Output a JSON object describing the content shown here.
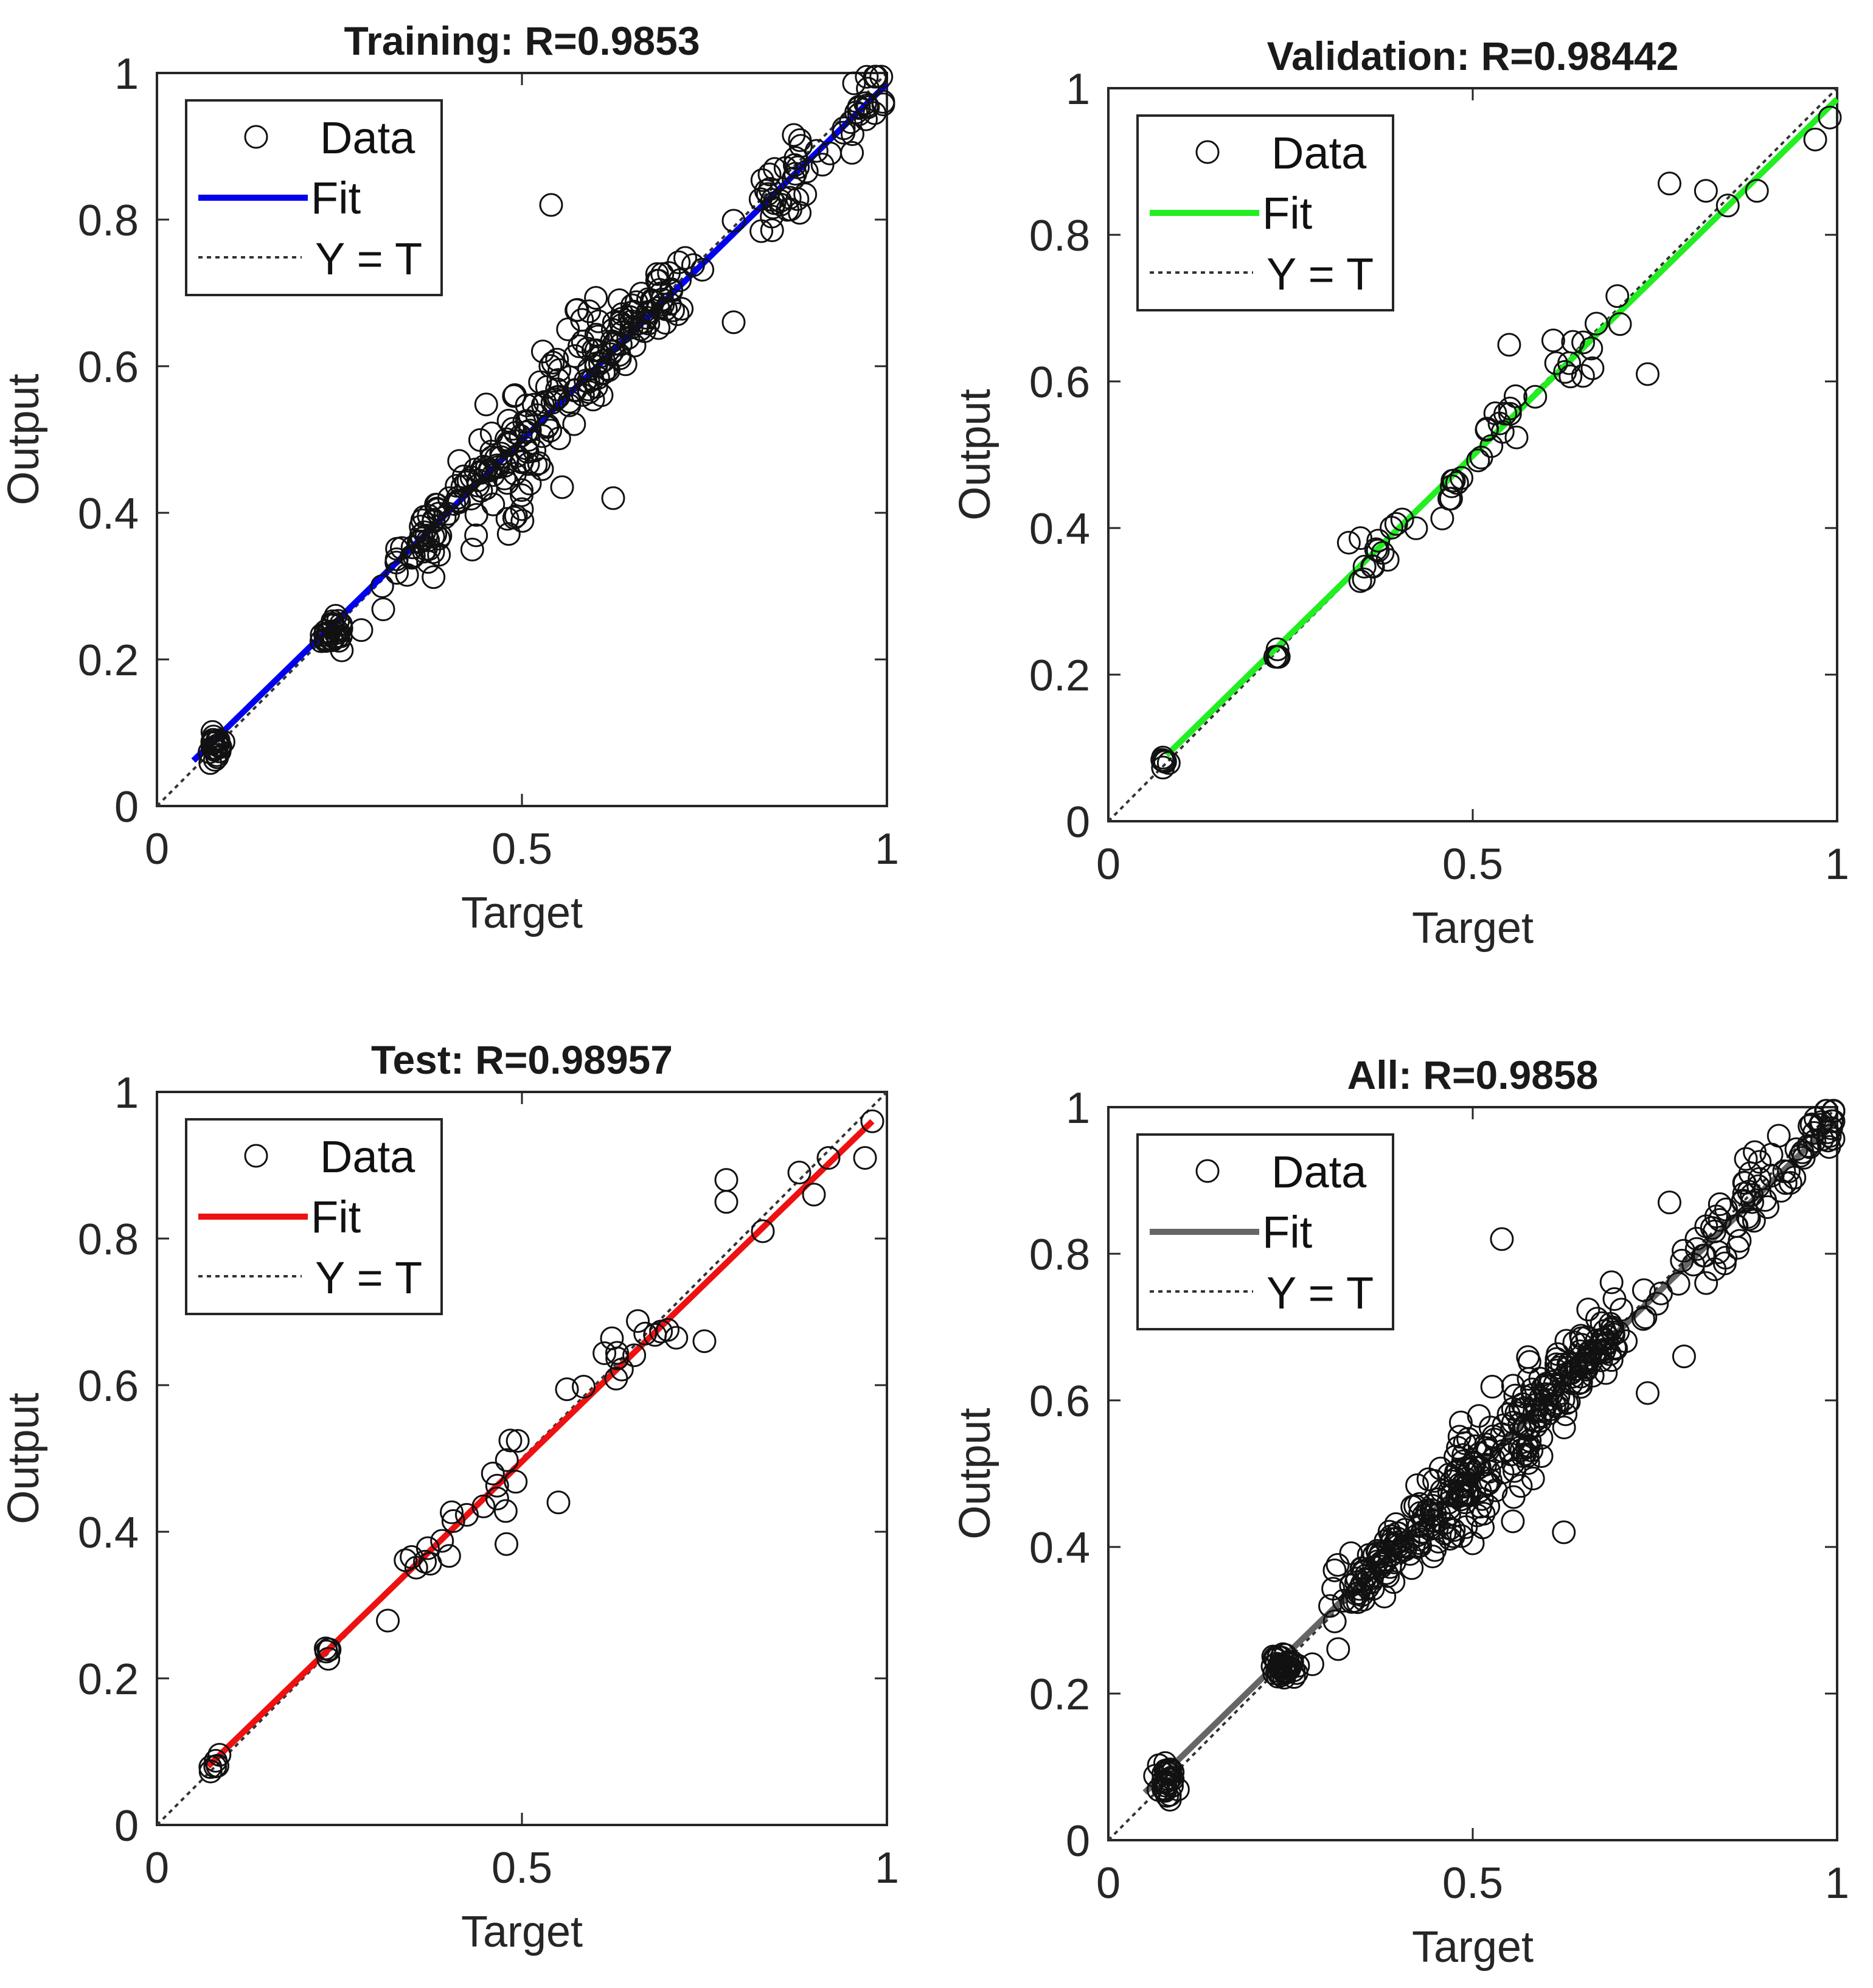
{
  "chart_data": [
    {
      "type": "scatter",
      "title": "Training: R=0.9853",
      "xlabel": "Target",
      "ylabel": "Output",
      "xlim": [
        0,
        1
      ],
      "ylim": [
        0,
        1
      ],
      "xticks": [
        "0",
        "0.5",
        "1"
      ],
      "yticks": [
        "0",
        "0.2",
        "0.4",
        "0.6",
        "0.8",
        "1"
      ],
      "legend": {
        "placement": "top-left",
        "entries": [
          "Data",
          "Fit",
          "Y = T"
        ]
      },
      "fit_color": "#0000ee",
      "fit_line": {
        "x": [
          0.05,
          1.0
        ],
        "y": [
          0.062,
          0.985
        ]
      },
      "clusters": [
        {
          "x": 0.08,
          "y": 0.08,
          "sx": 0.006,
          "sy": 0.012,
          "n": 22,
          "tight": true
        },
        {
          "x": 0.24,
          "y": 0.235,
          "sx": 0.01,
          "sy": 0.01,
          "n": 28,
          "tight": true
        },
        {
          "x": 0.37,
          "y": 0.375,
          "sx": 0.03,
          "sy": 0.018,
          "n": 45
        },
        {
          "x": 0.47,
          "y": 0.47,
          "sx": 0.035,
          "sy": 0.035,
          "n": 70
        },
        {
          "x": 0.56,
          "y": 0.56,
          "sx": 0.04,
          "sy": 0.04,
          "n": 60
        },
        {
          "x": 0.66,
          "y": 0.66,
          "sx": 0.04,
          "sy": 0.025,
          "n": 70
        },
        {
          "x": 0.87,
          "y": 0.86,
          "sx": 0.05,
          "sy": 0.03,
          "n": 35
        },
        {
          "x": 0.97,
          "y": 0.96,
          "sx": 0.02,
          "sy": 0.02,
          "n": 22
        }
      ],
      "outliers": [
        [
          0.54,
          0.82
        ],
        [
          0.625,
          0.42
        ],
        [
          0.555,
          0.435
        ],
        [
          0.28,
          0.24
        ],
        [
          0.5,
          0.405
        ],
        [
          0.79,
          0.66
        ]
      ]
    },
    {
      "type": "scatter",
      "title": "Validation: R=0.98442",
      "xlabel": "Target",
      "ylabel": "Output",
      "xlim": [
        0,
        1
      ],
      "ylim": [
        0,
        1
      ],
      "xticks": [
        "0",
        "0.5",
        "1"
      ],
      "yticks": [
        "0",
        "0.2",
        "0.4",
        "0.6",
        "0.8",
        "1"
      ],
      "legend": {
        "placement": "top-left",
        "entries": [
          "Data",
          "Fit",
          "Y = T"
        ]
      },
      "fit_color": "#22ee22",
      "fit_line": {
        "x": [
          0.08,
          1.0
        ],
        "y": [
          0.09,
          0.985
        ]
      },
      "clusters": [
        {
          "x": 0.08,
          "y": 0.08,
          "sx": 0.005,
          "sy": 0.008,
          "n": 6,
          "tight": true
        },
        {
          "x": 0.23,
          "y": 0.23,
          "sx": 0.005,
          "sy": 0.006,
          "n": 4,
          "tight": true
        },
        {
          "x": 0.37,
          "y": 0.37,
          "sx": 0.02,
          "sy": 0.02,
          "n": 14
        },
        {
          "x": 0.47,
          "y": 0.45,
          "sx": 0.02,
          "sy": 0.02,
          "n": 10
        },
        {
          "x": 0.54,
          "y": 0.54,
          "sx": 0.02,
          "sy": 0.02,
          "n": 12
        },
        {
          "x": 0.65,
          "y": 0.64,
          "sx": 0.03,
          "sy": 0.025,
          "n": 14
        }
      ],
      "outliers": [
        [
          0.77,
          0.87
        ],
        [
          0.82,
          0.86
        ],
        [
          0.85,
          0.84
        ],
        [
          0.89,
          0.86
        ],
        [
          0.74,
          0.61
        ],
        [
          0.97,
          0.93
        ],
        [
          0.99,
          0.96
        ],
        [
          0.55,
          0.65
        ],
        [
          0.33,
          0.38
        ]
      ]
    },
    {
      "type": "scatter",
      "title": "Test: R=0.98957",
      "xlabel": "Target",
      "ylabel": "Output",
      "xlim": [
        0,
        1
      ],
      "ylim": [
        0,
        1
      ],
      "xticks": [
        "0",
        "0.5",
        "1"
      ],
      "yticks": [
        "0",
        "0.2",
        "0.4",
        "0.6",
        "0.8",
        "1"
      ],
      "legend": {
        "placement": "top-left",
        "entries": [
          "Data",
          "Fit",
          "Y = T"
        ]
      },
      "fit_color": "#ee1111",
      "fit_line": {
        "x": [
          0.07,
          0.98
        ],
        "y": [
          0.08,
          0.96
        ]
      },
      "clusters": [
        {
          "x": 0.08,
          "y": 0.08,
          "sx": 0.005,
          "sy": 0.006,
          "n": 6,
          "tight": true
        },
        {
          "x": 0.23,
          "y": 0.23,
          "sx": 0.006,
          "sy": 0.008,
          "n": 5,
          "tight": true
        },
        {
          "x": 0.38,
          "y": 0.38,
          "sx": 0.025,
          "sy": 0.025,
          "n": 12
        },
        {
          "x": 0.47,
          "y": 0.46,
          "sx": 0.02,
          "sy": 0.03,
          "n": 10
        },
        {
          "x": 0.61,
          "y": 0.62,
          "sx": 0.025,
          "sy": 0.02,
          "n": 10
        },
        {
          "x": 0.69,
          "y": 0.67,
          "sx": 0.02,
          "sy": 0.015,
          "n": 5
        }
      ],
      "outliers": [
        [
          0.78,
          0.88
        ],
        [
          0.78,
          0.85
        ],
        [
          0.83,
          0.81
        ],
        [
          0.88,
          0.89
        ],
        [
          0.9,
          0.86
        ],
        [
          0.92,
          0.91
        ],
        [
          0.97,
          0.91
        ],
        [
          0.98,
          0.96
        ],
        [
          0.55,
          0.44
        ],
        [
          0.75,
          0.66
        ]
      ]
    },
    {
      "type": "scatter",
      "title": "All: R=0.9858",
      "xlabel": "Target",
      "ylabel": "Output",
      "xlim": [
        0,
        1
      ],
      "ylim": [
        0,
        1
      ],
      "xticks": [
        "0",
        "0.5",
        "1"
      ],
      "yticks": [
        "0",
        "0.2",
        "0.4",
        "0.6",
        "0.8",
        "1"
      ],
      "legend": {
        "placement": "top-left",
        "entries": [
          "Data",
          "Fit",
          "Y = T"
        ]
      },
      "fit_color": "#666666",
      "fit_line": {
        "x": [
          0.05,
          1.0
        ],
        "y": [
          0.065,
          0.985
        ]
      },
      "clusters": [
        {
          "x": 0.08,
          "y": 0.08,
          "sx": 0.007,
          "sy": 0.012,
          "n": 30,
          "tight": true
        },
        {
          "x": 0.24,
          "y": 0.235,
          "sx": 0.01,
          "sy": 0.01,
          "n": 36,
          "tight": true
        },
        {
          "x": 0.37,
          "y": 0.375,
          "sx": 0.03,
          "sy": 0.02,
          "n": 70
        },
        {
          "x": 0.47,
          "y": 0.47,
          "sx": 0.035,
          "sy": 0.035,
          "n": 95
        },
        {
          "x": 0.56,
          "y": 0.56,
          "sx": 0.04,
          "sy": 0.04,
          "n": 80
        },
        {
          "x": 0.66,
          "y": 0.66,
          "sx": 0.04,
          "sy": 0.025,
          "n": 95
        },
        {
          "x": 0.87,
          "y": 0.86,
          "sx": 0.05,
          "sy": 0.03,
          "n": 50
        },
        {
          "x": 0.97,
          "y": 0.96,
          "sx": 0.02,
          "sy": 0.02,
          "n": 30
        }
      ],
      "outliers": [
        [
          0.54,
          0.82
        ],
        [
          0.625,
          0.42
        ],
        [
          0.555,
          0.435
        ],
        [
          0.28,
          0.24
        ],
        [
          0.5,
          0.405
        ],
        [
          0.79,
          0.66
        ],
        [
          0.74,
          0.61
        ],
        [
          0.77,
          0.87
        ]
      ]
    }
  ]
}
